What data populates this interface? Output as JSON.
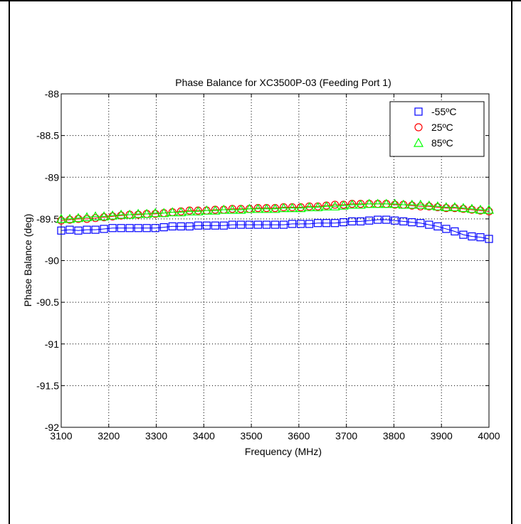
{
  "chart_data": {
    "type": "line",
    "title": "Phase Balance for XC3500P-03 (Feeding Port 1)",
    "xlabel": "Frequency (MHz)",
    "ylabel": "Phase Balance (deg)",
    "xlim": [
      3100,
      4000
    ],
    "ylim": [
      -92,
      -88
    ],
    "xticks": [
      "3100",
      "3200",
      "3300",
      "3400",
      "3500",
      "3600",
      "3700",
      "3800",
      "3900",
      "4000"
    ],
    "xtick_values": [
      3100,
      3200,
      3300,
      3400,
      3500,
      3600,
      3700,
      3800,
      3900,
      4000
    ],
    "yticks": [
      "-92",
      "-91.5",
      "-91",
      "-90.5",
      "-90",
      "-89.5",
      "-89",
      "-88.5",
      "-88"
    ],
    "ytick_values": [
      -92,
      -91.5,
      -91,
      -90.5,
      -90,
      -89.5,
      -89,
      -88.5,
      -88
    ],
    "grid": true,
    "legend_position": "top-right",
    "x": [
      3100,
      3118,
      3136,
      3154,
      3172,
      3190,
      3208,
      3226,
      3244,
      3262,
      3280,
      3298,
      3316,
      3334,
      3352,
      3370,
      3388,
      3406,
      3424,
      3442,
      3460,
      3478,
      3496,
      3514,
      3532,
      3550,
      3568,
      3586,
      3604,
      3622,
      3640,
      3658,
      3676,
      3694,
      3712,
      3730,
      3748,
      3766,
      3784,
      3802,
      3820,
      3838,
      3856,
      3874,
      3892,
      3910,
      3928,
      3946,
      3964,
      3982,
      4000
    ],
    "series": [
      {
        "name": "-55ºC",
        "color": "#0000ff",
        "marker": "square",
        "values": [
          -89.64,
          -89.63,
          -89.64,
          -89.63,
          -89.63,
          -89.62,
          -89.61,
          -89.61,
          -89.61,
          -89.61,
          -89.61,
          -89.61,
          -89.6,
          -89.59,
          -89.59,
          -89.59,
          -89.58,
          -89.58,
          -89.58,
          -89.58,
          -89.57,
          -89.57,
          -89.57,
          -89.57,
          -89.57,
          -89.57,
          -89.57,
          -89.56,
          -89.56,
          -89.56,
          -89.55,
          -89.55,
          -89.55,
          -89.54,
          -89.53,
          -89.53,
          -89.52,
          -89.51,
          -89.51,
          -89.52,
          -89.53,
          -89.54,
          -89.55,
          -89.57,
          -89.59,
          -89.62,
          -89.65,
          -89.69,
          -89.71,
          -89.72,
          -89.74
        ]
      },
      {
        "name": "25ºC",
        "color": "#ff0000",
        "marker": "circle",
        "values": [
          -89.52,
          -89.51,
          -89.5,
          -89.5,
          -89.49,
          -89.48,
          -89.47,
          -89.46,
          -89.45,
          -89.45,
          -89.44,
          -89.44,
          -89.43,
          -89.42,
          -89.41,
          -89.4,
          -89.4,
          -89.4,
          -89.39,
          -89.39,
          -89.38,
          -89.38,
          -89.38,
          -89.37,
          -89.37,
          -89.37,
          -89.36,
          -89.36,
          -89.36,
          -89.35,
          -89.35,
          -89.34,
          -89.33,
          -89.33,
          -89.32,
          -89.32,
          -89.32,
          -89.32,
          -89.32,
          -89.33,
          -89.33,
          -89.34,
          -89.35,
          -89.35,
          -89.36,
          -89.37,
          -89.37,
          -89.38,
          -89.39,
          -89.4,
          -89.41
        ]
      },
      {
        "name": "85ºC",
        "color": "#00ff00",
        "marker": "triangle",
        "values": [
          -89.5,
          -89.5,
          -89.49,
          -89.48,
          -89.47,
          -89.47,
          -89.46,
          -89.45,
          -89.45,
          -89.44,
          -89.44,
          -89.43,
          -89.43,
          -89.42,
          -89.42,
          -89.41,
          -89.41,
          -89.4,
          -89.4,
          -89.39,
          -89.39,
          -89.39,
          -89.38,
          -89.38,
          -89.38,
          -89.38,
          -89.37,
          -89.37,
          -89.37,
          -89.36,
          -89.36,
          -89.35,
          -89.35,
          -89.34,
          -89.33,
          -89.33,
          -89.32,
          -89.32,
          -89.32,
          -89.32,
          -89.33,
          -89.33,
          -89.33,
          -89.34,
          -89.35,
          -89.36,
          -89.36,
          -89.37,
          -89.38,
          -89.39,
          -89.39
        ]
      }
    ]
  }
}
